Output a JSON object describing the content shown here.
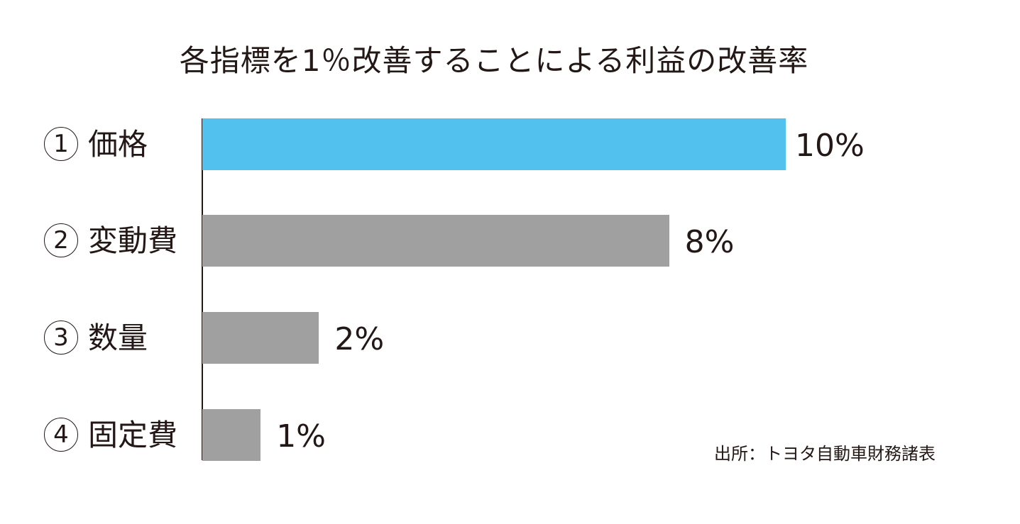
{
  "title": "各指標を1％改善することによる利益の改善率",
  "source": "出所：トヨタ自動車財務諸表",
  "colors": {
    "highlight": "#52C1EE",
    "default": "#A0A0A0",
    "axis": "#231815",
    "text": "#231815"
  },
  "items": [
    {
      "num": "1",
      "label": "価格",
      "value_label": "10%"
    },
    {
      "num": "2",
      "label": "変動費",
      "value_label": "8%"
    },
    {
      "num": "3",
      "label": "数量",
      "value_label": "2%"
    },
    {
      "num": "4",
      "label": "固定費",
      "value_label": "1%"
    }
  ],
  "chart_data": {
    "type": "bar",
    "orientation": "horizontal",
    "title": "各指標を1％改善することによる利益の改善率",
    "categories": [
      "① 価格",
      "② 変動費",
      "③ 数量",
      "④ 固定費"
    ],
    "values": [
      10,
      8,
      2,
      1
    ],
    "value_labels": [
      "10%",
      "8%",
      "2%",
      "1%"
    ],
    "unit": "%",
    "xlabel": "",
    "ylabel": "",
    "xlim": [
      0,
      10
    ],
    "grid": false,
    "legend": null,
    "bar_colors": [
      "#52C1EE",
      "#A0A0A0",
      "#A0A0A0",
      "#A0A0A0"
    ],
    "annotations": [
      "出所：トヨタ自動車財務諸表"
    ]
  }
}
